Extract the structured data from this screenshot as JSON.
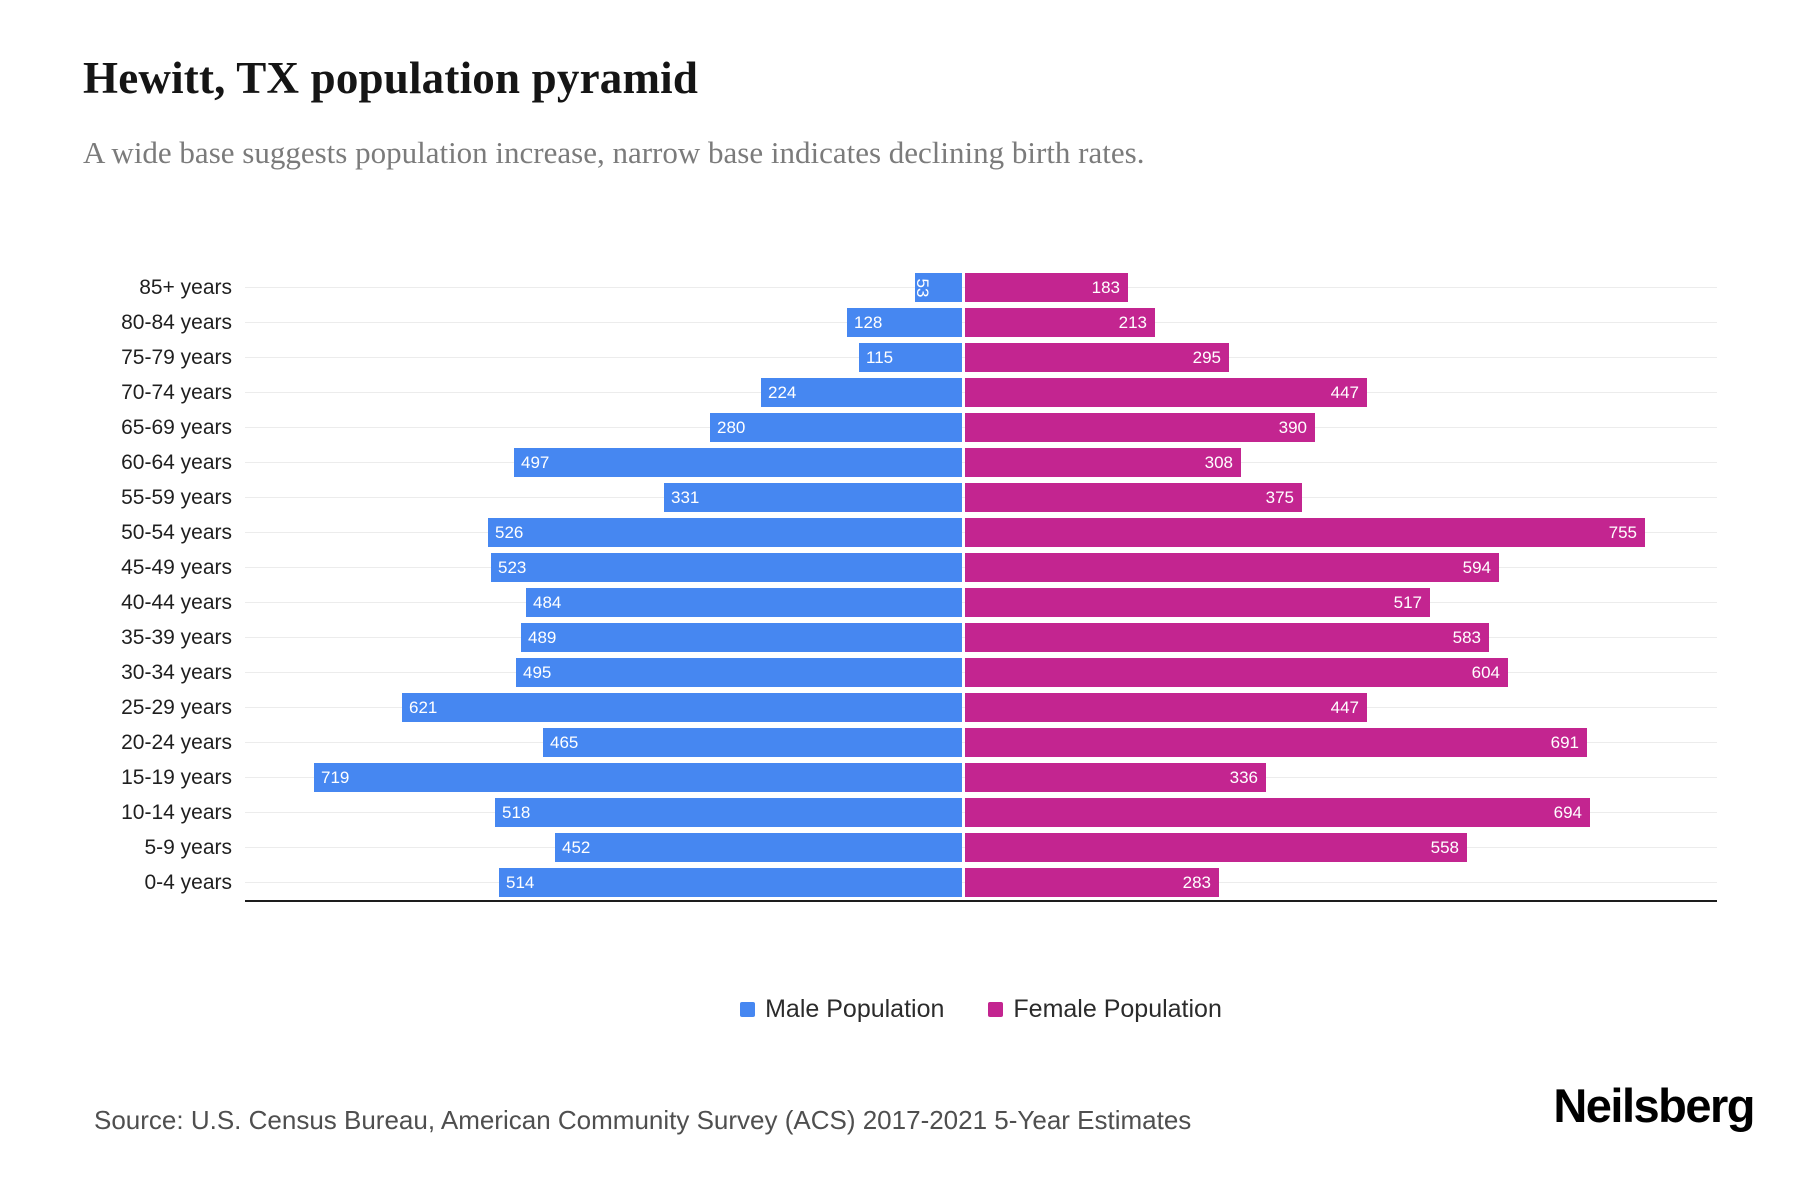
{
  "title": "Hewitt, TX population pyramid",
  "subtitle": "A wide base suggests population increase, narrow base indicates declining birth rates.",
  "legend": [
    {
      "label": "Male Population",
      "color": "#4687F1"
    },
    {
      "label": "Female Population",
      "color": "#C32590"
    }
  ],
  "footer": {
    "source": "Source: U.S. Census Bureau, American Community Survey (ACS) 2017-2021 5-Year Estimates",
    "brand": "Neilsberg"
  },
  "colors": {
    "male_bar": "#4687F1",
    "female_bar": "#C32590",
    "bar_value_text": "#ffffff",
    "gridline": "#ececec",
    "axis_line": "#1d1d1d",
    "subtitle_text": "#7b7b7b"
  },
  "chart_data": {
    "type": "bar",
    "variant": "population-pyramid",
    "title": "Hewitt, TX population pyramid",
    "categories": [
      "85+ years",
      "80-84 years",
      "75-79 years",
      "70-74 years",
      "65-69 years",
      "60-64 years",
      "55-59 years",
      "50-54 years",
      "45-49 years",
      "40-44 years",
      "35-39 years",
      "30-34 years",
      "25-29 years",
      "20-24 years",
      "15-19 years",
      "10-14 years",
      "5-9 years",
      "0-4 years"
    ],
    "series": [
      {
        "name": "Male Population",
        "side": "left",
        "color": "#4687F1",
        "values": [
          53,
          128,
          115,
          224,
          280,
          497,
          331,
          526,
          523,
          484,
          489,
          495,
          621,
          465,
          719,
          518,
          452,
          514
        ]
      },
      {
        "name": "Female Population",
        "side": "right",
        "color": "#C32590",
        "values": [
          183,
          213,
          295,
          447,
          390,
          308,
          375,
          755,
          594,
          517,
          583,
          604,
          447,
          691,
          336,
          694,
          558,
          283
        ]
      }
    ],
    "value_labels": "inside-ends",
    "grid": "horizontal-per-category",
    "legend_position": "bottom-center",
    "axis_hints": {
      "male_side_max": 795,
      "female_side_max": 835
    }
  }
}
